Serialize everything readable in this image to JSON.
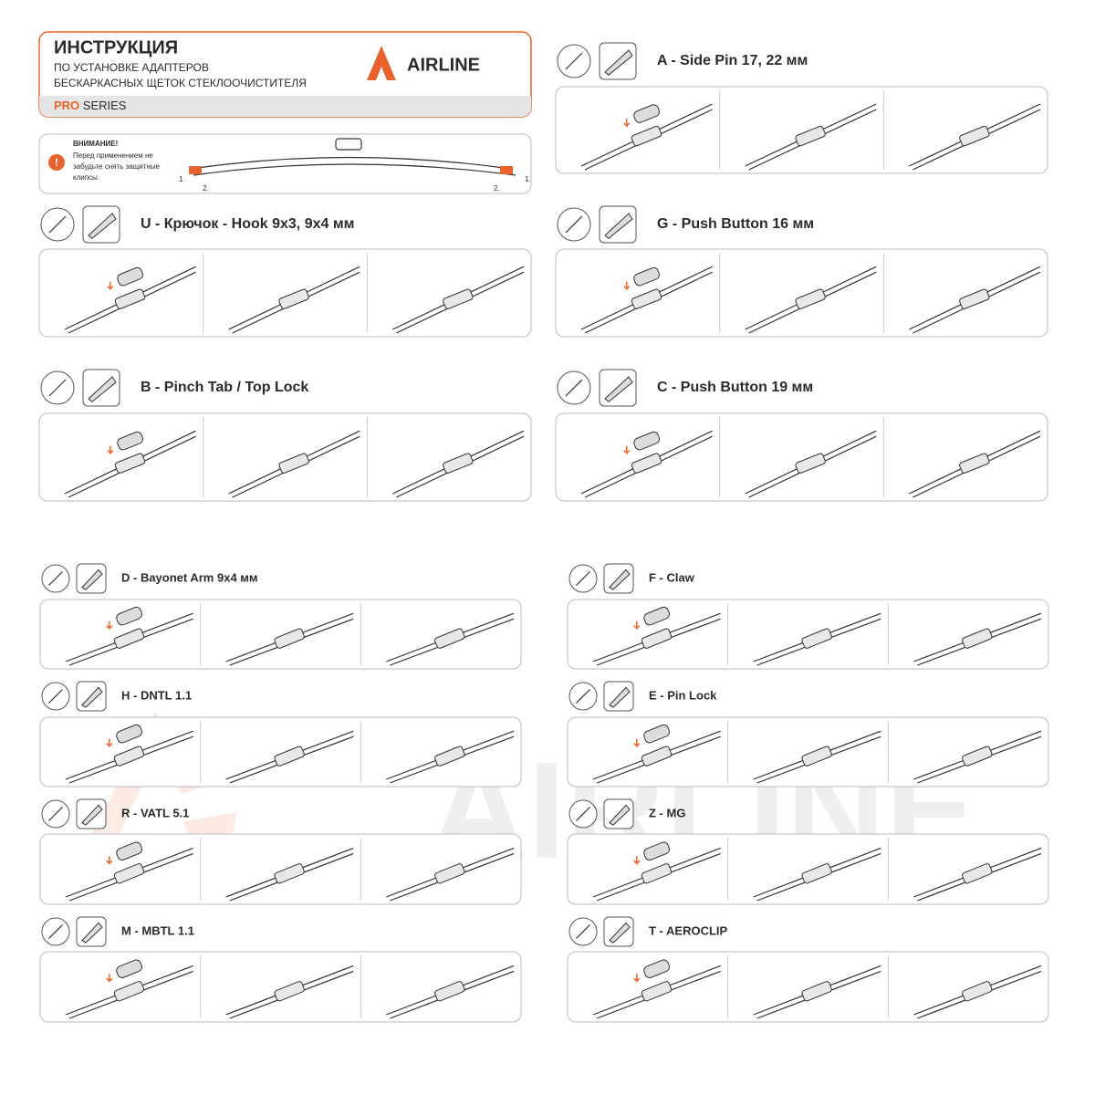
{
  "header": {
    "title": "ИНСТРУКЦИЯ",
    "subtitle_lines": [
      "ПО УСТАНОВКЕ АДАПТЕРОВ",
      "БЕСКАРКАСНЫХ ЩЕТОК СТЕКЛООЧИСТИТЕЛЯ"
    ],
    "series_accent": "PRO",
    "series": "SERIES",
    "brand": "AIRLINE"
  },
  "warning": {
    "title": "ВНИМАНИЕ!",
    "lines": [
      "Перед применением не",
      "забудьте снять защитные",
      "клипсы."
    ],
    "steps": [
      "1.",
      "2.",
      "2.",
      "1."
    ]
  },
  "sections": [
    {
      "label": "A - Side Pin 17, 22 мм"
    },
    {
      "label": "U - Крючок - Hook 9x3, 9x4 мм"
    },
    {
      "label": "G - Push Button 16 мм"
    },
    {
      "label": "B - Pinch Tab / Top Lock"
    },
    {
      "label": "C - Push Button 19 мм"
    },
    {
      "label": "D - Bayonet Arm 9x4 мм"
    },
    {
      "label": "F - Claw"
    },
    {
      "label": "H - DNTL 1.1"
    },
    {
      "label": "E - Pin Lock"
    },
    {
      "label": "R - VATL 5.1"
    },
    {
      "label": "Z - MG"
    },
    {
      "label": "M - MBTL 1.1"
    },
    {
      "label": "T - AEROCLIP"
    }
  ],
  "watermark": "AIRLINE"
}
